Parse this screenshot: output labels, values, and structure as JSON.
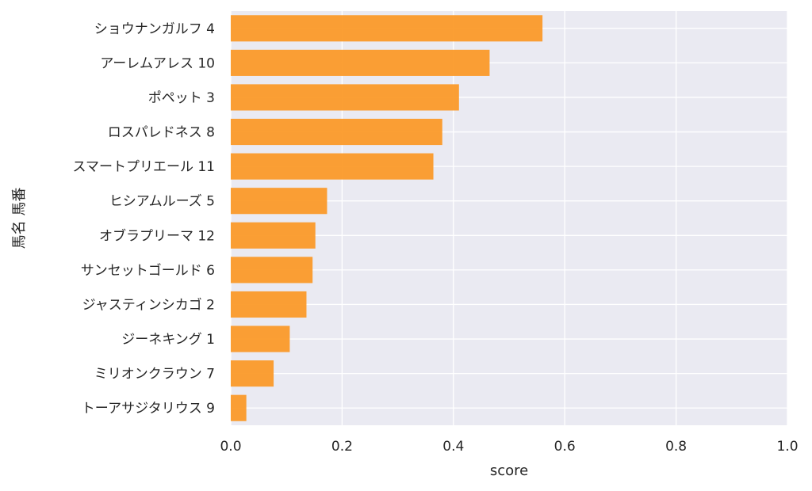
{
  "chart_data": {
    "type": "bar",
    "orientation": "horizontal",
    "categories": [
      "ショウナンガルフ 4",
      "アーレムアレス 10",
      "ポペット 3",
      "ロスパレドネス 8",
      "スマートプリエール 11",
      "ヒシアムルーズ 5",
      "オブラプリーマ 12",
      "サンセットゴールド 6",
      "ジャスティンシカゴ 2",
      "ジーネキング 1",
      "ミリオンクラウン 7",
      "トーアサジタリウス 9"
    ],
    "values": [
      0.56,
      0.465,
      0.41,
      0.38,
      0.364,
      0.173,
      0.152,
      0.147,
      0.136,
      0.106,
      0.077,
      0.028
    ],
    "xlabel": "score",
    "ylabel": "馬名 馬番",
    "xlim": [
      0.0,
      1.0
    ],
    "xticks": [
      "0.0",
      "0.2",
      "0.4",
      "0.6",
      "0.8",
      "1.0"
    ],
    "grid": true,
    "colors": {
      "bar": "#fb9a29",
      "plot_background": "#eaeaf2",
      "grid": "#ffffff"
    }
  }
}
